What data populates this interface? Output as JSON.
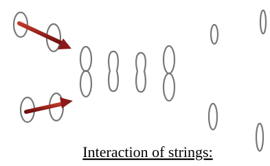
{
  "caption": "Interaction of strings:"
}
